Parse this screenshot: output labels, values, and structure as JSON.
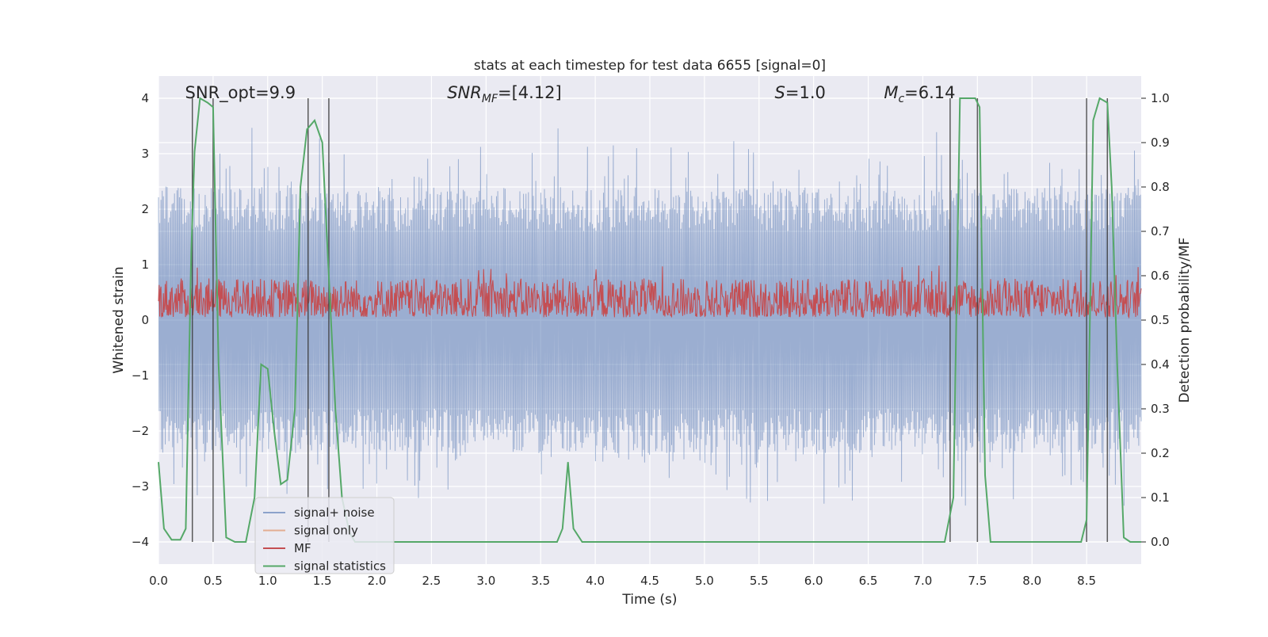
{
  "chart_data": {
    "type": "line",
    "title": "stats at each timestep for test data 6655 [signal=0]",
    "xlabel": "Time (s)",
    "ylabel": "Whitened strain",
    "y2label": "Detection probability/MF",
    "xlim": [
      0.0,
      9.0
    ],
    "ylim": [
      -4.4,
      4.4
    ],
    "y2lim": [
      -0.05,
      1.05
    ],
    "xticks": [
      0.0,
      0.5,
      1.0,
      1.5,
      2.0,
      2.5,
      3.0,
      3.5,
      4.0,
      4.5,
      5.0,
      5.5,
      6.0,
      6.5,
      7.0,
      7.5,
      8.0,
      8.5
    ],
    "xtick_labels": [
      "0.0",
      "0.5",
      "1.0",
      "1.5",
      "2.0",
      "2.5",
      "3.0",
      "3.5",
      "4.0",
      "4.5",
      "5.0",
      "5.5",
      "6.0",
      "6.5",
      "7.0",
      "7.5",
      "8.0",
      "8.5"
    ],
    "yticks": [
      -4,
      -3,
      -2,
      -1,
      0,
      1,
      2,
      3,
      4
    ],
    "ytick_labels": [
      "−4",
      "−3",
      "−2",
      "−1",
      "0",
      "1",
      "2",
      "3",
      "4"
    ],
    "y2ticks": [
      0.0,
      0.1,
      0.2,
      0.3,
      0.4,
      0.5,
      0.6,
      0.7,
      0.8,
      0.9,
      1.0
    ],
    "y2tick_labels": [
      "0.0",
      "0.1",
      "0.2",
      "0.3",
      "0.4",
      "0.5",
      "0.6",
      "0.7",
      "0.8",
      "0.9",
      "1.0"
    ],
    "grid": true,
    "legend_position": "lower-left",
    "annotations": [
      {
        "text": "SNR_opt=9.9",
        "x": 0.2
      },
      {
        "text": "SNR_MF=[4.12]",
        "x": 2.6
      },
      {
        "text": "S=1.0",
        "x": 5.6
      },
      {
        "text": "M_c=6.14",
        "x": 6.6
      }
    ],
    "series": [
      {
        "name": "signal+ noise",
        "color": "#4c72b0",
        "axis": "left",
        "style": "dense-noise",
        "amplitude_envelope": [
          2.4,
          3.5
        ]
      },
      {
        "name": "signal only",
        "color": "#dd8452",
        "axis": "left",
        "values": []
      },
      {
        "name": "MF",
        "color": "#c44e52",
        "axis": "left",
        "style": "dense-noise",
        "baseline": 0.0,
        "typical_max": 0.75,
        "peak": 1.0
      },
      {
        "name": "signal statistics",
        "color": "#55a868",
        "axis": "right",
        "x": [
          0.0,
          0.05,
          0.12,
          0.2,
          0.25,
          0.3,
          0.33,
          0.38,
          0.45,
          0.5,
          0.55,
          0.62,
          0.7,
          0.8,
          0.88,
          0.94,
          1.0,
          1.06,
          1.12,
          1.18,
          1.25,
          1.3,
          1.36,
          1.43,
          1.5,
          1.56,
          1.62,
          1.68,
          1.75,
          1.8,
          1.87,
          1.95,
          2.05,
          2.2,
          3.5,
          3.65,
          3.7,
          3.75,
          3.8,
          3.88,
          4.0,
          7.2,
          7.28,
          7.34,
          7.4,
          7.48,
          7.52,
          7.57,
          7.62,
          7.7,
          8.45,
          8.5,
          8.56,
          8.62,
          8.69,
          8.73,
          8.78,
          8.84,
          8.9,
          9.0
        ],
        "y": [
          0.18,
          0.03,
          0.005,
          0.005,
          0.03,
          0.65,
          0.88,
          1.0,
          0.99,
          0.98,
          0.4,
          0.01,
          0.0,
          0.0,
          0.1,
          0.4,
          0.39,
          0.25,
          0.13,
          0.14,
          0.3,
          0.8,
          0.93,
          0.95,
          0.9,
          0.6,
          0.3,
          0.1,
          0.02,
          0.0,
          0.0,
          0.0,
          0.0,
          0.0,
          0.0,
          0.0,
          0.03,
          0.18,
          0.03,
          0.0,
          0.0,
          0.0,
          0.1,
          1.0,
          1.0,
          1.0,
          0.98,
          0.15,
          0.0,
          0.0,
          0.0,
          0.05,
          0.95,
          1.0,
          0.99,
          0.8,
          0.4,
          0.01,
          0.0,
          0.0
        ]
      },
      {
        "name": "detection markers",
        "color": "#404040",
        "axis": "left",
        "style": "vlines",
        "x": [
          0.31,
          0.5,
          1.37,
          1.56,
          7.25,
          7.5,
          8.5,
          8.69
        ]
      }
    ]
  },
  "legend": {
    "items": [
      {
        "label": "signal+ noise",
        "color": "#4c72b0"
      },
      {
        "label": "signal only",
        "color": "#dd8452"
      },
      {
        "label": "MF",
        "color": "#c44e52"
      },
      {
        "label": "signal statistics",
        "color": "#55a868"
      }
    ]
  }
}
